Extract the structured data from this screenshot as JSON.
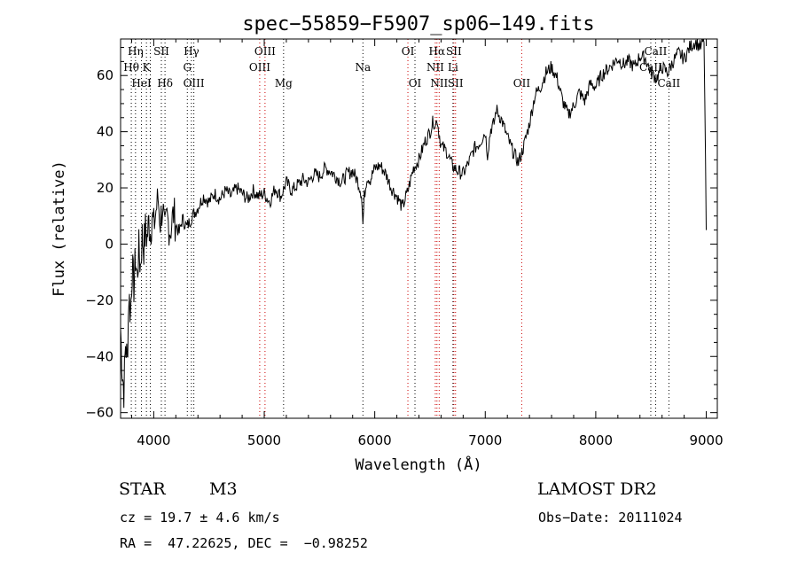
{
  "chart_data": {
    "type": "line",
    "title": "spec−55859−F5907_sp06−149.fits",
    "xlabel": "Wavelength (Å)",
    "ylabel": "Flux (relative)",
    "xlim": [
      3700,
      9100
    ],
    "ylim": [
      -62,
      73
    ],
    "x_ticks": [
      4000,
      5000,
      6000,
      7000,
      8000,
      9000
    ],
    "y_ticks": [
      -60,
      -40,
      -20,
      0,
      20,
      40,
      60
    ],
    "x_tick_labels": [
      "4000",
      "5000",
      "6000",
      "7000",
      "8000",
      "9000"
    ],
    "y_tick_labels": [
      "−60",
      "−40",
      "−20",
      "0",
      "20",
      "40",
      "60"
    ],
    "grid": false,
    "series": [
      {
        "color": "#000000",
        "x": [
          3700,
          3715,
          3730,
          3745,
          3760,
          3775,
          3790,
          3805,
          3820,
          3835,
          3850,
          3865,
          3880,
          3895,
          3910,
          3925,
          3940,
          3955,
          3970,
          3985,
          4000,
          4020,
          4040,
          4060,
          4080,
          4100,
          4120,
          4150,
          4180,
          4200,
          4230,
          4260,
          4300,
          4350,
          4400,
          4450,
          4500,
          4550,
          4600,
          4650,
          4700,
          4750,
          4800,
          4850,
          4900,
          4950,
          5000,
          5050,
          5100,
          5150,
          5200,
          5250,
          5300,
          5350,
          5400,
          5450,
          5500,
          5550,
          5600,
          5650,
          5700,
          5750,
          5800,
          5850,
          5880,
          5893,
          5905,
          5930,
          5960,
          6000,
          6050,
          6100,
          6150,
          6200,
          6250,
          6300,
          6350,
          6400,
          6450,
          6500,
          6530,
          6550,
          6563,
          6580,
          6600,
          6650,
          6700,
          6750,
          6800,
          6850,
          6900,
          6950,
          7000,
          7020,
          7050,
          7080,
          7100,
          7150,
          7200,
          7250,
          7300,
          7350,
          7400,
          7450,
          7500,
          7550,
          7600,
          7650,
          7700,
          7750,
          7800,
          7850,
          7900,
          7950,
          8000,
          8050,
          8100,
          8150,
          8200,
          8250,
          8300,
          8350,
          8400,
          8450,
          8500,
          8550,
          8600,
          8650,
          8700,
          8750,
          8800,
          8850,
          8900,
          8950,
          8980,
          9000
        ],
        "y": [
          -30,
          -45,
          -52,
          -35,
          -42,
          -18,
          -25,
          -8,
          -15,
          -5,
          -12,
          -2,
          -8,
          3,
          -1,
          5,
          2,
          8,
          4,
          10,
          6,
          12,
          16,
          8,
          14,
          3,
          9,
          5,
          11,
          7,
          4,
          9,
          6,
          10,
          13,
          17,
          15,
          18,
          16,
          19,
          17,
          20,
          18,
          16,
          19,
          17,
          18,
          15,
          20,
          17,
          22,
          19,
          21,
          23,
          22,
          25,
          24,
          27,
          26,
          24,
          22,
          25,
          26,
          22,
          18,
          7,
          17,
          24,
          23,
          27,
          28,
          25,
          20,
          17,
          13,
          19,
          27,
          30,
          36,
          40,
          44,
          42,
          45,
          40,
          35,
          33,
          28,
          26,
          25,
          29,
          34,
          36,
          40,
          32,
          41,
          43,
          48,
          44,
          38,
          33,
          29,
          35,
          43,
          53,
          56,
          61,
          63,
          59,
          51,
          46,
          49,
          54,
          51,
          57,
          56,
          60,
          62,
          64,
          66,
          64,
          65,
          63,
          67,
          66,
          61,
          59,
          63,
          61,
          65,
          68,
          66,
          70,
          72,
          70,
          73,
          5
        ],
        "noise": 2.5
      }
    ],
    "annotations": [
      {
        "label": "Hη",
        "wavelength": 3835,
        "row": 1,
        "color": "#000000"
      },
      {
        "label": "Hθ",
        "wavelength": 3797,
        "row": 2,
        "color": "#000000"
      },
      {
        "label": "K",
        "wavelength": 3934,
        "row": 2,
        "color": "#000000"
      },
      {
        "label": "HeI",
        "wavelength": 3889,
        "row": 3,
        "color": "#000000"
      },
      {
        "label": "SII",
        "wavelength": 4069,
        "row": 1,
        "color": "#000000"
      },
      {
        "label": "Hδ",
        "wavelength": 4102,
        "row": 3,
        "color": "#000000"
      },
      {
        "label": "Hγ",
        "wavelength": 4341,
        "row": 1,
        "color": "#000000"
      },
      {
        "label": "G",
        "wavelength": 4304,
        "row": 2,
        "color": "#000000"
      },
      {
        "label": "OIII",
        "wavelength": 4363,
        "row": 3,
        "color": "#000000"
      },
      {
        "label": "OIII",
        "wavelength": 5007,
        "row": 1,
        "color": "#000000"
      },
      {
        "label": "OIII",
        "wavelength": 4959,
        "row": 2,
        "color": "#000000"
      },
      {
        "label": "Mg",
        "wavelength": 5175,
        "row": 3,
        "color": "#000000"
      },
      {
        "label": "Na",
        "wavelength": 5893,
        "row": 2,
        "color": "#000000"
      },
      {
        "label": "OI",
        "wavelength": 6300,
        "row": 1,
        "color": "#000000"
      },
      {
        "label": "OI",
        "wavelength": 6364,
        "row": 3,
        "color": "#000000"
      },
      {
        "label": "Hα",
        "wavelength": 6563,
        "row": 1,
        "color": "#000000"
      },
      {
        "label": "SII",
        "wavelength": 6716,
        "row": 1,
        "color": "#000000"
      },
      {
        "label": "NII",
        "wavelength": 6548,
        "row": 2,
        "color": "#000000"
      },
      {
        "label": "Li",
        "wavelength": 6708,
        "row": 2,
        "color": "#000000"
      },
      {
        "label": "NII",
        "wavelength": 6583,
        "row": 3,
        "color": "#000000"
      },
      {
        "label": "SII",
        "wavelength": 6731,
        "row": 3,
        "color": "#000000"
      },
      {
        "label": "OII",
        "wavelength": 7330,
        "row": 3,
        "color": "#000000"
      },
      {
        "label": "CaII",
        "wavelength": 8542,
        "row": 1,
        "color": "#000000"
      },
      {
        "label": "CaII",
        "wavelength": 8498,
        "row": 2,
        "color": "#000000"
      },
      {
        "label": "CaII",
        "wavelength": 8662,
        "row": 3,
        "color": "#000000"
      }
    ],
    "line_markers": [
      {
        "wavelength": 3797,
        "color": "#000000"
      },
      {
        "wavelength": 3835,
        "color": "#000000"
      },
      {
        "wavelength": 3889,
        "color": "#000000"
      },
      {
        "wavelength": 3934,
        "color": "#000000"
      },
      {
        "wavelength": 3969,
        "color": "#000000"
      },
      {
        "wavelength": 4069,
        "color": "#000000"
      },
      {
        "wavelength": 4102,
        "color": "#000000"
      },
      {
        "wavelength": 4304,
        "color": "#000000"
      },
      {
        "wavelength": 4341,
        "color": "#000000"
      },
      {
        "wavelength": 4363,
        "color": "#000000"
      },
      {
        "wavelength": 4959,
        "color": "#cc0000"
      },
      {
        "wavelength": 5007,
        "color": "#cc0000"
      },
      {
        "wavelength": 5175,
        "color": "#000000"
      },
      {
        "wavelength": 5893,
        "color": "#000000"
      },
      {
        "wavelength": 6300,
        "color": "#cc0000"
      },
      {
        "wavelength": 6364,
        "color": "#000000"
      },
      {
        "wavelength": 6548,
        "color": "#cc0000"
      },
      {
        "wavelength": 6563,
        "color": "#cc0000"
      },
      {
        "wavelength": 6583,
        "color": "#cc0000"
      },
      {
        "wavelength": 6708,
        "color": "#000000"
      },
      {
        "wavelength": 6716,
        "color": "#cc0000"
      },
      {
        "wavelength": 6731,
        "color": "#cc0000"
      },
      {
        "wavelength": 7330,
        "color": "#cc0000"
      },
      {
        "wavelength": 8498,
        "color": "#000000"
      },
      {
        "wavelength": 8542,
        "color": "#000000"
      },
      {
        "wavelength": 8662,
        "color": "#000000"
      }
    ]
  },
  "footer": {
    "object_class": "STAR",
    "subclass": "M3",
    "survey": "LAMOST DR2",
    "cz": "cz = 19.7 ± 4.6 km/s",
    "obs_date": "Obs−Date: 20111024",
    "coords": "RA =  47.22625, DEC =  −0.98252"
  }
}
